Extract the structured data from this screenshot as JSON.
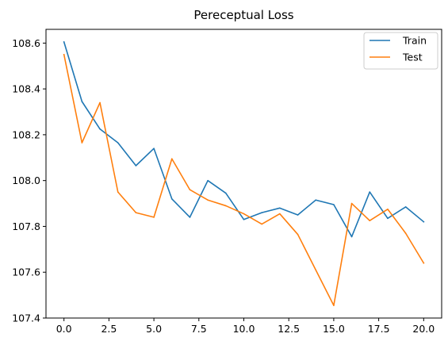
{
  "chart_data": {
    "type": "line",
    "title": "Pereceptual Loss",
    "xlabel": "",
    "ylabel": "",
    "x": [
      0,
      1,
      2,
      3,
      4,
      5,
      6,
      7,
      8,
      9,
      10,
      11,
      12,
      13,
      14,
      15,
      16,
      17,
      18,
      19,
      20
    ],
    "xlim": [
      -1,
      21
    ],
    "ylim": [
      107.4,
      108.66
    ],
    "xticks": [
      0,
      2.5,
      5,
      7.5,
      10,
      12.5,
      15,
      17.5,
      20
    ],
    "xtick_labels": [
      "0.0",
      "2.5",
      "5.0",
      "7.5",
      "10.0",
      "12.5",
      "15.0",
      "17.5",
      "20.0"
    ],
    "yticks": [
      107.4,
      107.6,
      107.8,
      108.0,
      108.2,
      108.4,
      108.6
    ],
    "ytick_labels": [
      "107.4",
      "107.6",
      "107.8",
      "108.0",
      "108.2",
      "108.4",
      "108.6"
    ],
    "grid": false,
    "legend_position": "top-right",
    "series": [
      {
        "name": "Train",
        "color": "#1f77b4",
        "values": [
          108.605,
          108.345,
          108.225,
          108.165,
          108.065,
          108.14,
          107.92,
          107.84,
          108.0,
          107.945,
          107.83,
          107.86,
          107.88,
          107.85,
          107.915,
          107.895,
          107.755,
          107.95,
          107.835,
          107.885,
          107.82
        ]
      },
      {
        "name": "Test",
        "color": "#ff7f0e",
        "values": [
          108.55,
          108.165,
          108.34,
          107.95,
          107.86,
          107.84,
          108.095,
          107.96,
          107.915,
          107.89,
          107.855,
          107.81,
          107.855,
          107.765,
          107.61,
          107.455,
          107.9,
          107.825,
          107.875,
          107.77,
          107.64
        ]
      }
    ]
  }
}
